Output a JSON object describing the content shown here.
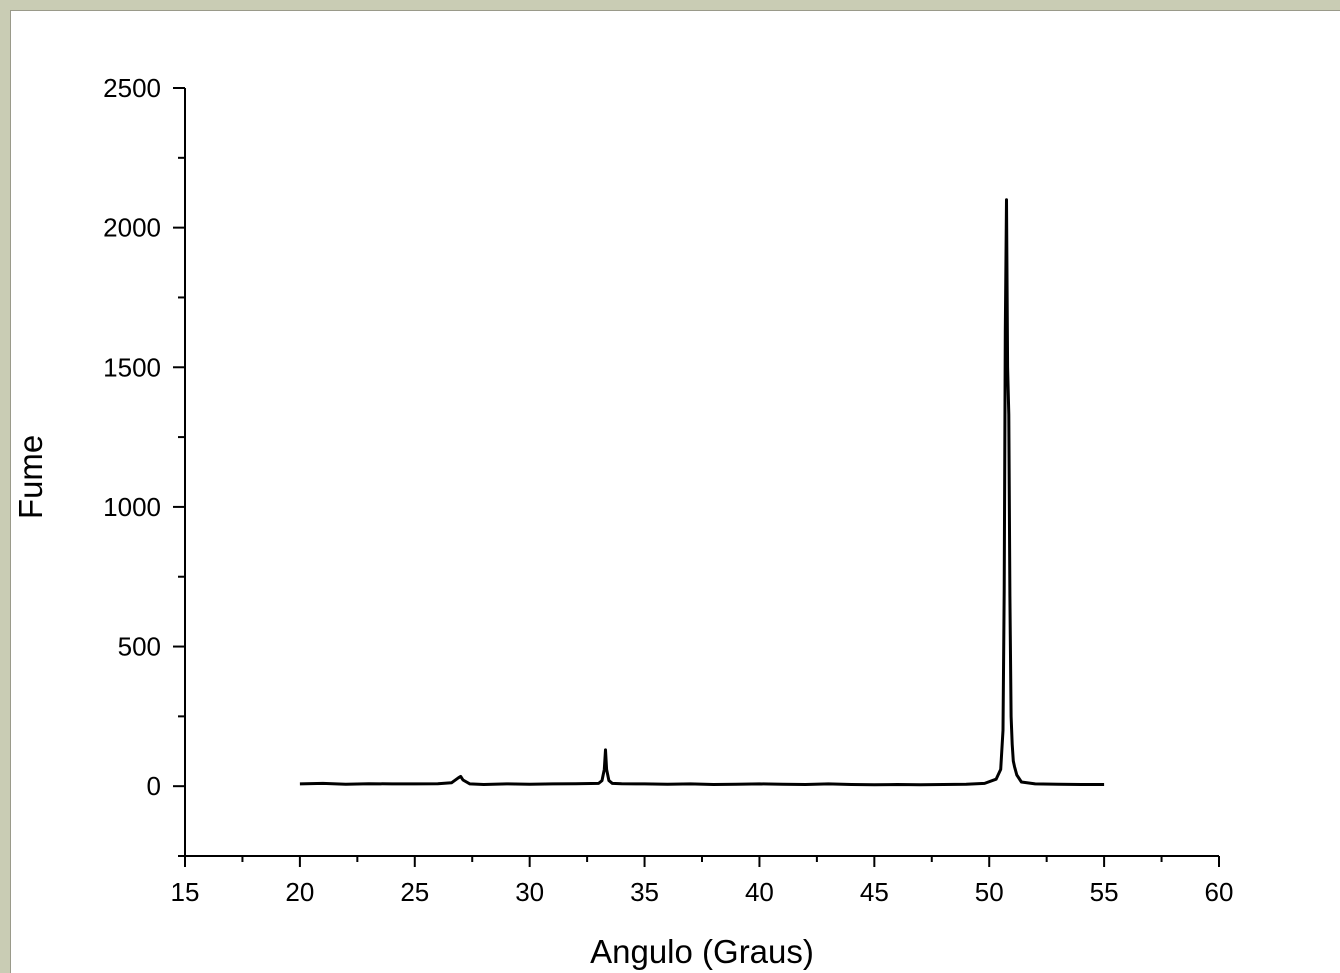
{
  "chart_data": {
    "type": "line",
    "xlabel": "Angulo (Graus)",
    "ylabel": "Fume",
    "xlim": [
      15,
      60
    ],
    "ylim": [
      -250,
      2500
    ],
    "x_ticks": [
      15,
      20,
      25,
      30,
      35,
      40,
      45,
      50,
      55,
      60
    ],
    "y_ticks": [
      0,
      500,
      1000,
      1500,
      2000,
      2500
    ],
    "x_tick_labels": [
      "15",
      "20",
      "25",
      "30",
      "35",
      "40",
      "45",
      "50",
      "55",
      "60"
    ],
    "y_tick_labels": [
      "0",
      "500",
      "1000",
      "1500",
      "2000",
      "2500"
    ],
    "grid": false,
    "line_color": "#000000",
    "series": [
      {
        "x": [
          20.0,
          21.0,
          22.0,
          23.0,
          24.0,
          25.0,
          26.0,
          26.6,
          26.9,
          27.0,
          27.1,
          27.4,
          28.0,
          29.0,
          30.0,
          31.0,
          32.0,
          33.0,
          33.15,
          33.25,
          33.3,
          33.35,
          33.45,
          33.6,
          34.0,
          35.0,
          36.0,
          37.0,
          38.0,
          39.0,
          40.0,
          41.0,
          42.0,
          43.0,
          44.0,
          45.0,
          46.0,
          47.0,
          48.0,
          49.0,
          49.8,
          50.3,
          50.5,
          50.6,
          50.65,
          50.7,
          50.75,
          50.8,
          50.85,
          50.9,
          50.95,
          51.0,
          51.05,
          51.1,
          51.2,
          51.4,
          52.0,
          53.0,
          54.0,
          55.0
        ],
        "y": [
          8,
          10,
          7,
          9,
          8,
          8,
          9,
          12,
          30,
          35,
          22,
          8,
          6,
          8,
          7,
          8,
          9,
          10,
          20,
          60,
          130,
          60,
          20,
          10,
          9,
          8,
          7,
          8,
          6,
          7,
          8,
          7,
          6,
          8,
          6,
          5,
          6,
          5,
          6,
          7,
          10,
          25,
          60,
          200,
          700,
          1630,
          2100,
          1500,
          1330,
          680,
          250,
          150,
          90,
          70,
          40,
          15,
          8,
          7,
          6,
          6
        ]
      }
    ]
  }
}
